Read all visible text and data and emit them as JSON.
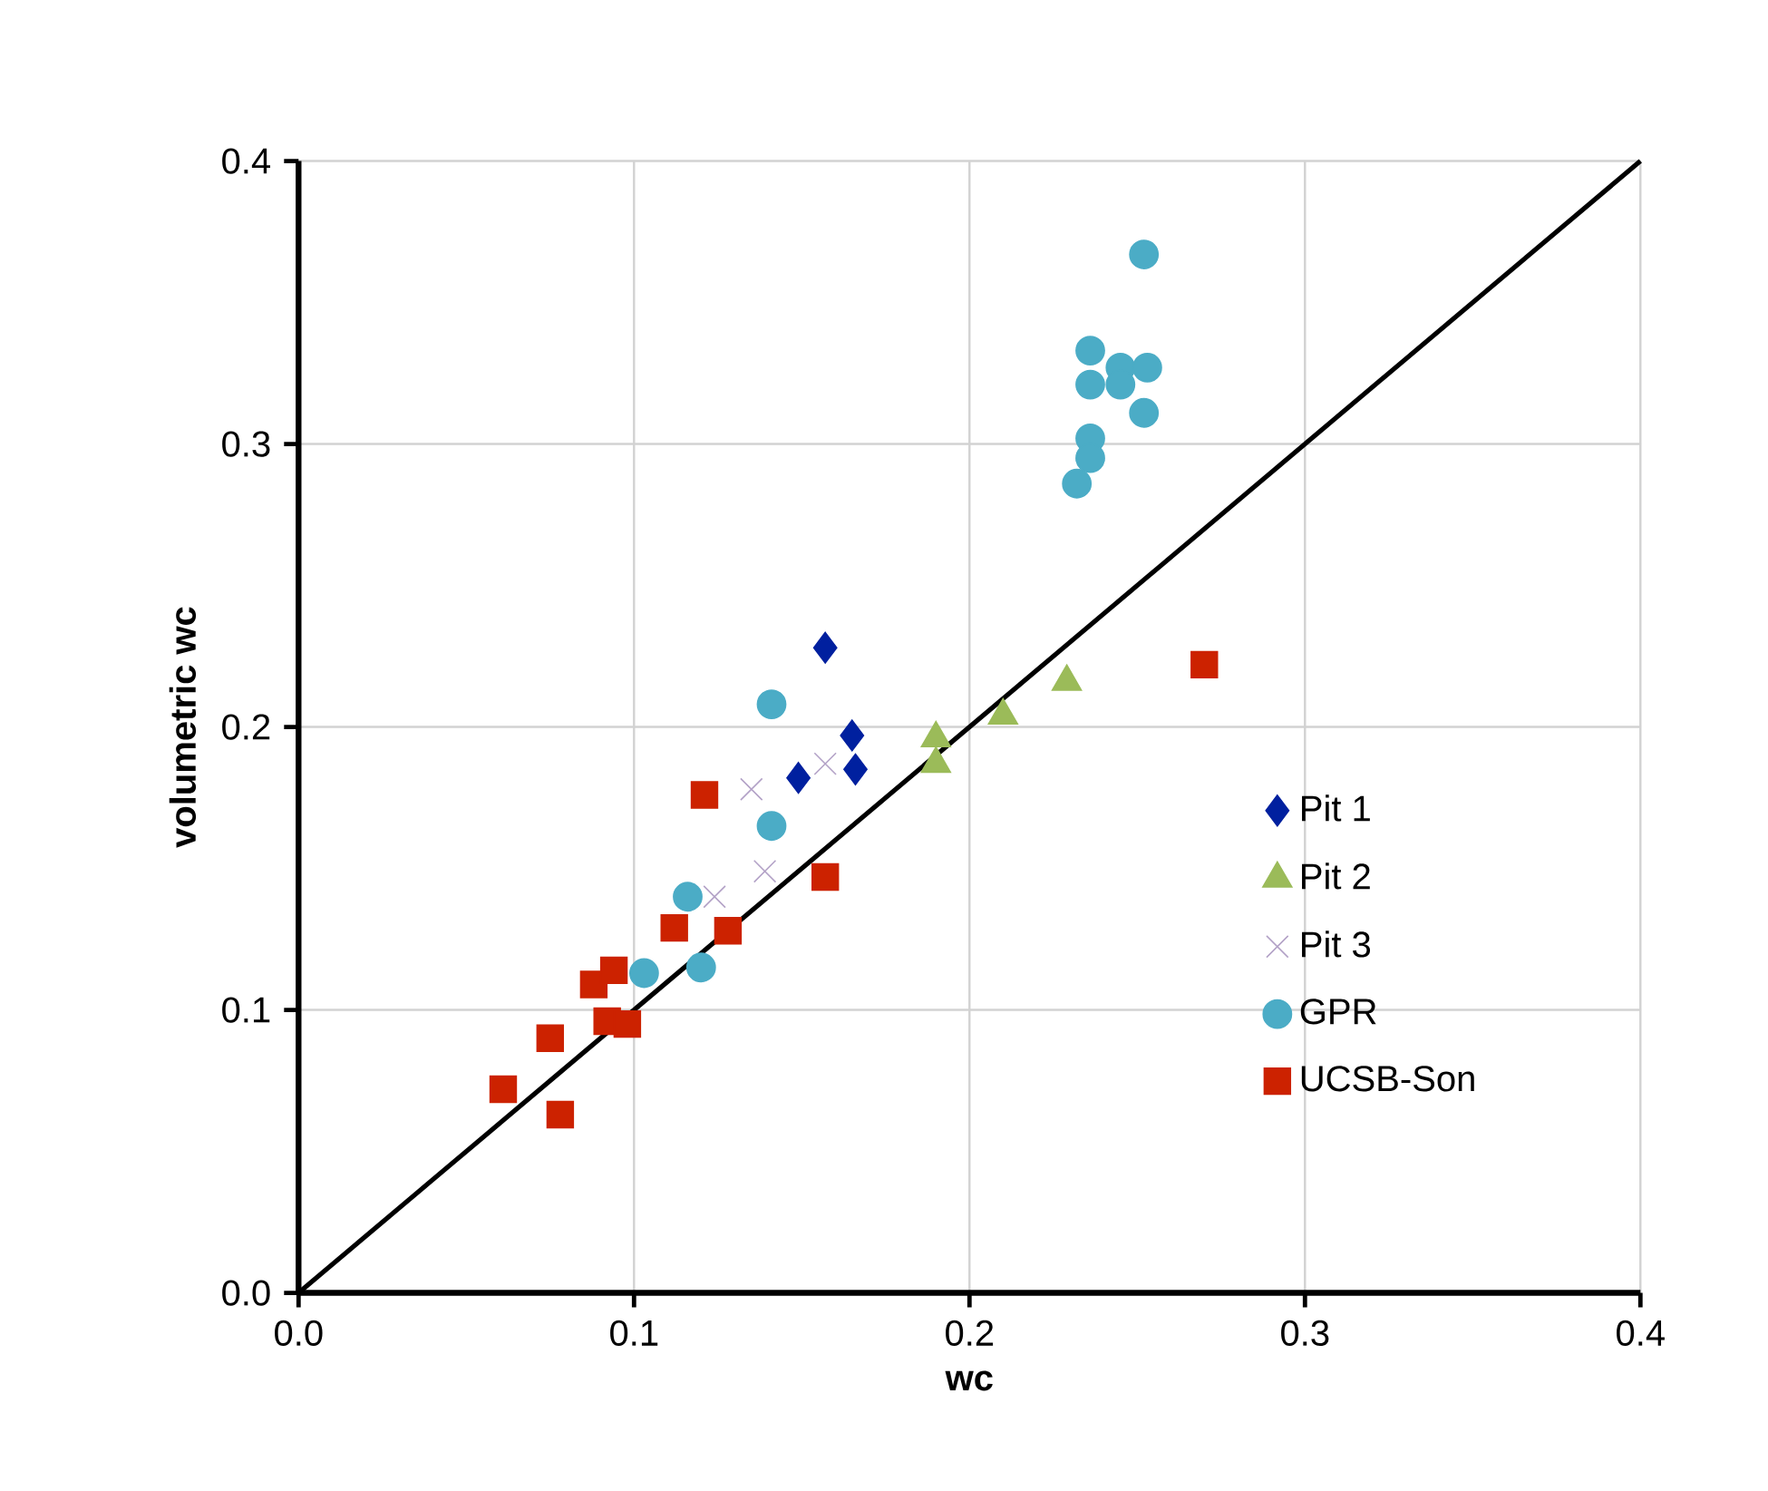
{
  "chart_data": {
    "type": "scatter",
    "xlabel": "wc",
    "ylabel": "volumetric wc",
    "xlim": [
      0,
      0.4
    ],
    "ylim": [
      0,
      0.4
    ],
    "xticks": [
      {
        "value": 0,
        "label": "0.0"
      },
      0.1,
      0.2,
      0.3,
      0.4
    ],
    "yticks": [
      {
        "value": 0,
        "label": "0.0"
      },
      0.1,
      0.2,
      0.3,
      0.4
    ],
    "grid": true,
    "legend": "right",
    "series": [
      {
        "name": "Pit 1",
        "color": "#00209f",
        "marker": "diamond",
        "x": [
          0.157,
          0.165,
          0.149,
          0.166
        ],
        "values": [
          0.228,
          0.197,
          0.182,
          0.185
        ]
      },
      {
        "name": "Pit 2",
        "color": "#9bbb59",
        "marker": "triangle",
        "x": [
          0.19,
          0.19,
          0.21,
          0.229
        ],
        "values": [
          0.196,
          0.187,
          0.204,
          0.216
        ]
      },
      {
        "name": "Pit 3",
        "color": "#b3a2c7",
        "marker": "cross",
        "x": [
          0.135,
          0.157,
          0.124,
          0.139
        ],
        "values": [
          0.178,
          0.187,
          0.14,
          0.149
        ]
      },
      {
        "name": "GPR",
        "color": "#4bacc6",
        "marker": "circle",
        "x": [
          0.141,
          0.141,
          0.116,
          0.103,
          0.12,
          0.252,
          0.236,
          0.236,
          0.245,
          0.245,
          0.253,
          0.252,
          0.236,
          0.232,
          0.236
        ],
        "values": [
          0.208,
          0.165,
          0.14,
          0.113,
          0.115,
          0.367,
          0.333,
          0.321,
          0.327,
          0.321,
          0.327,
          0.311,
          0.302,
          0.286,
          0.295
        ]
      },
      {
        "name": "UCSB-Son",
        "color": "#cc2200",
        "marker": "square",
        "x": [
          0.121,
          0.157,
          0.112,
          0.128,
          0.088,
          0.094,
          0.092,
          0.098,
          0.075,
          0.061,
          0.078,
          0.27
        ],
        "values": [
          0.176,
          0.147,
          0.129,
          0.128,
          0.109,
          0.114,
          0.096,
          0.095,
          0.09,
          0.072,
          0.063,
          0.222
        ]
      },
      {
        "type": "line",
        "color": "#000000",
        "marker": "none",
        "line_style": "solid",
        "x": [
          0,
          0.4
        ],
        "values": [
          0,
          0.4
        ]
      }
    ]
  }
}
